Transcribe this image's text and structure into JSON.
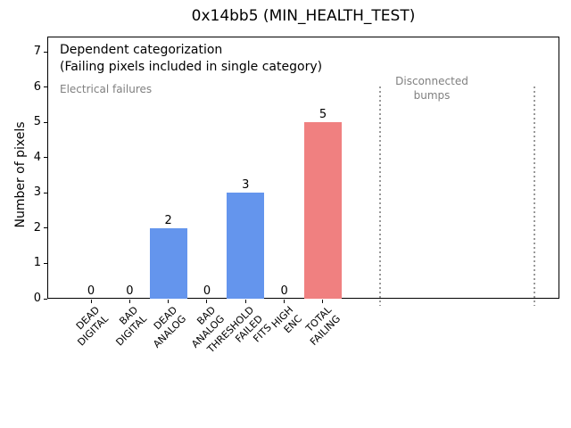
{
  "figure_title": "0x14bb5 (MIN_HEALTH_TEST)",
  "colors": {
    "bar_blue": "#6495ed",
    "bar_red": "#f08080",
    "annotation_gray": "#808080",
    "dotted_line_gray": "#999999",
    "axis_black": "#000000",
    "background": "#ffffff"
  },
  "chart_data": {
    "type": "bar",
    "title": "0x14bb5 (MIN_HEALTH_TEST)",
    "xlabel": "",
    "ylabel": "Number of pixels",
    "categories": [
      [
        "DEAD",
        "DIGITAL"
      ],
      [
        "BAD",
        "DIGITAL"
      ],
      [
        "DEAD",
        "ANALOG"
      ],
      [
        "BAD",
        "ANALOG"
      ],
      [
        "THRESHOLD",
        "FAILED",
        "FITS"
      ],
      [
        "HIGH",
        "ENC"
      ],
      [
        "TOTAL",
        "FAILING"
      ]
    ],
    "values": [
      0,
      0,
      2,
      0,
      3,
      0,
      5
    ],
    "bar_colors": [
      "#6495ed",
      "#6495ed",
      "#6495ed",
      "#6495ed",
      "#6495ed",
      "#6495ed",
      "#f08080"
    ],
    "bar_value_labels": [
      "0",
      "0",
      "2",
      "0",
      "3",
      "0",
      "5"
    ],
    "yticks": [
      0,
      1,
      2,
      3,
      4,
      5,
      6,
      7
    ],
    "ylim": [
      0,
      7.44
    ],
    "grid": false,
    "legend": null,
    "annotations": {
      "dependent_line1": "Dependent categorization",
      "dependent_line2": "(Failing pixels included in single category)",
      "electrical_failures": "Electrical failures",
      "disconnected_line1": "Disconnected",
      "disconnected_line2": "bumps"
    }
  }
}
